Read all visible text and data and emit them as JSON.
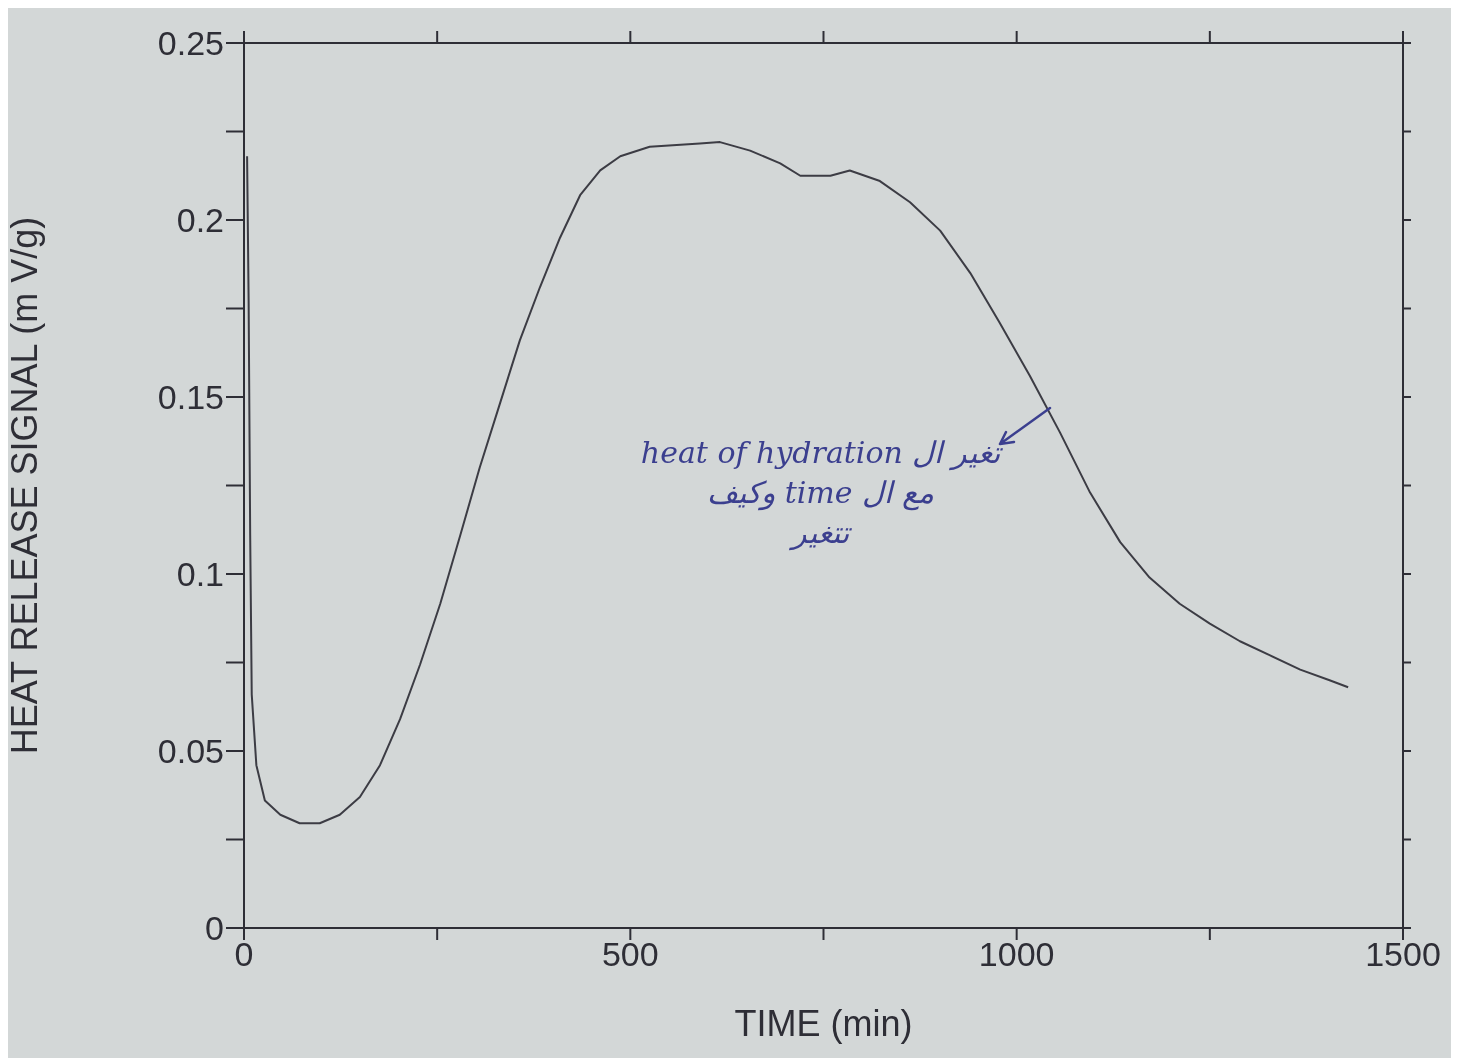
{
  "chart_data": {
    "type": "line",
    "xlabel": "TIME (min)",
    "ylabel": "HEAT RELEASE SIGNAL (m V/g)",
    "x": [
      4,
      6,
      8,
      10,
      16,
      27,
      47,
      72,
      98,
      124,
      150,
      176,
      202,
      228,
      254,
      280,
      305,
      331,
      357,
      383,
      409,
      435,
      461,
      487,
      525,
      590,
      616,
      655,
      694,
      720,
      759,
      784,
      823,
      862,
      901,
      940,
      978,
      1017,
      1056,
      1095,
      1134,
      1172,
      1211,
      1250,
      1289,
      1328,
      1367,
      1405,
      1429
    ],
    "series": [
      {
        "color": "#3c3c44",
        "values": [
          0.218,
          0.177,
          0.111,
          0.066,
          0.046,
          0.036,
          0.032,
          0.0296,
          0.0296,
          0.032,
          0.037,
          0.046,
          0.059,
          0.0745,
          0.0916,
          0.111,
          0.13,
          0.148,
          0.166,
          0.181,
          0.195,
          0.207,
          0.214,
          0.218,
          0.2207,
          0.2216,
          0.222,
          0.2196,
          0.216,
          0.2125,
          0.2125,
          0.214,
          0.211,
          0.205,
          0.197,
          0.185,
          0.171,
          0.156,
          0.14,
          0.123,
          0.109,
          0.099,
          0.0916,
          0.086,
          0.081,
          0.077,
          0.073,
          0.07,
          0.068
        ]
      }
    ],
    "xlim": [
      0,
      1500
    ],
    "xticks": [
      0,
      {
        "value": 250,
        "label": null
      },
      500,
      {
        "value": 750,
        "label": null
      },
      1000,
      {
        "value": 1250,
        "label": null
      },
      1500
    ],
    "ylim": [
      0,
      0.25
    ],
    "yticks": [
      0,
      {
        "value": 0.025,
        "label": null
      },
      0.05,
      {
        "value": 0.075,
        "label": null
      },
      0.1,
      {
        "value": 0.125,
        "label": null
      },
      0.15,
      {
        "value": 0.175,
        "label": null
      },
      0.2,
      {
        "value": 0.225,
        "label": null
      },
      0.25
    ],
    "grid": false,
    "marker": "none",
    "line_style": "solid",
    "annotations": [
      {
        "text": "تغير ال heat of hydration\nمع ال time وكيف\nتتغير",
        "x": 1043,
        "y": 0.147
      }
    ]
  }
}
